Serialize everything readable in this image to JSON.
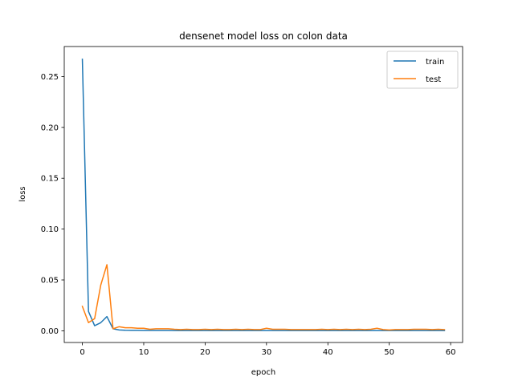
{
  "chart_data": {
    "type": "line",
    "title": "densenet model loss on colon data",
    "xlabel": "epoch",
    "ylabel": "loss",
    "xlim": [
      -2.95,
      61.95
    ],
    "ylim": [
      -0.0115,
      0.2795
    ],
    "xticks": [
      0,
      10,
      20,
      30,
      40,
      50,
      60
    ],
    "yticks": [
      0.0,
      0.05,
      0.1,
      0.15,
      0.2,
      0.25
    ],
    "xtick_labels": [
      "0",
      "10",
      "20",
      "30",
      "40",
      "50",
      "60"
    ],
    "ytick_labels": [
      "0.00",
      "0.05",
      "0.10",
      "0.15",
      "0.20",
      "0.25"
    ],
    "grid": false,
    "legend": "upper right",
    "x": [
      0,
      1,
      2,
      3,
      4,
      5,
      6,
      7,
      8,
      9,
      10,
      11,
      12,
      13,
      14,
      15,
      16,
      17,
      18,
      19,
      20,
      21,
      22,
      23,
      24,
      25,
      26,
      27,
      28,
      29,
      30,
      31,
      32,
      33,
      34,
      35,
      36,
      37,
      38,
      39,
      40,
      41,
      42,
      43,
      44,
      45,
      46,
      47,
      48,
      49,
      50,
      51,
      52,
      53,
      54,
      55,
      56,
      57,
      58,
      59
    ],
    "series": [
      {
        "name": "train",
        "color": "#1f77b4",
        "values": [
          0.267,
          0.019,
          0.005,
          0.008,
          0.014,
          0.002,
          0.0008,
          0.0005,
          0.0004,
          0.0004,
          0.0003,
          0.0003,
          0.0003,
          0.0003,
          0.0003,
          0.0002,
          0.0002,
          0.0002,
          0.0002,
          0.0002,
          0.0002,
          0.0002,
          0.0002,
          0.0002,
          0.0002,
          0.0002,
          0.0002,
          0.0002,
          0.0002,
          0.0002,
          0.0002,
          0.0002,
          0.0002,
          0.0002,
          0.0002,
          0.0002,
          0.0002,
          0.0002,
          0.0002,
          0.0002,
          0.0002,
          0.0002,
          0.0002,
          0.0002,
          0.0002,
          0.0002,
          0.0002,
          0.0002,
          0.0002,
          0.0002,
          0.0002,
          0.0002,
          0.0002,
          0.0002,
          0.0002,
          0.0002,
          0.0002,
          0.0002,
          0.0002,
          0.0002
        ]
      },
      {
        "name": "test",
        "color": "#ff7f0e",
        "values": [
          0.024,
          0.008,
          0.012,
          0.045,
          0.065,
          0.002,
          0.004,
          0.003,
          0.003,
          0.0025,
          0.0025,
          0.0015,
          0.002,
          0.002,
          0.002,
          0.0015,
          0.0012,
          0.0015,
          0.0012,
          0.0012,
          0.0015,
          0.0012,
          0.0015,
          0.0012,
          0.0012,
          0.0015,
          0.0012,
          0.0015,
          0.0012,
          0.0012,
          0.0025,
          0.0015,
          0.0015,
          0.0015,
          0.0012,
          0.0012,
          0.0012,
          0.0012,
          0.0012,
          0.0015,
          0.0012,
          0.0015,
          0.0012,
          0.0015,
          0.0012,
          0.0015,
          0.0012,
          0.0015,
          0.0025,
          0.0012,
          0.0008,
          0.0012,
          0.0012,
          0.0012,
          0.0015,
          0.0015,
          0.0015,
          0.0012,
          0.0015,
          0.0012
        ]
      }
    ]
  }
}
